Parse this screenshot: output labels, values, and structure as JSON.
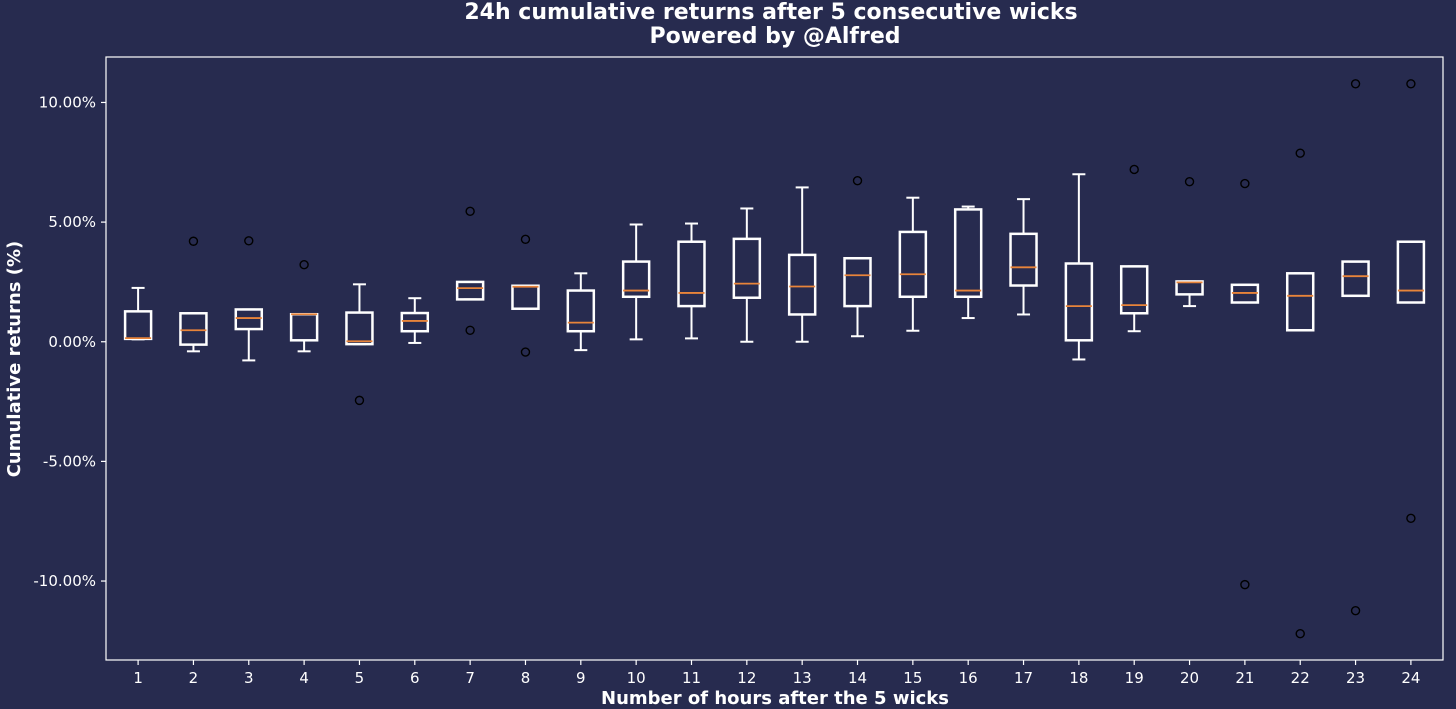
{
  "chart_data": {
    "type": "boxplot",
    "title": "24h cumulative returns after 5 consecutive wicks",
    "subtitle": "Powered by @Alfred",
    "xlabel": "Number of hours after the 5 wicks",
    "ylabel": "Cumulative returns (%)",
    "ylim": [
      -13.3,
      11.9
    ],
    "yticks": [
      -10,
      -5,
      0,
      5,
      10
    ],
    "ytick_labels": [
      "-10.00%",
      "-5.00%",
      "0.00%",
      "5.00%",
      "10.00%"
    ],
    "grid": false,
    "colors": {
      "background": "#272b4f",
      "box": "#ffffff",
      "median": "#e8843a",
      "text": "#ffffff"
    },
    "categories": [
      "1",
      "2",
      "3",
      "4",
      "5",
      "6",
      "7",
      "8",
      "9",
      "10",
      "11",
      "12",
      "13",
      "14",
      "15",
      "16",
      "17",
      "18",
      "19",
      "20",
      "21",
      "22",
      "23",
      "24"
    ],
    "boxes": [
      {
        "whislo": 0.1,
        "q1": 0.12,
        "med": 0.15,
        "q3": 1.27,
        "whishi": 2.25,
        "fliers": []
      },
      {
        "whislo": -0.4,
        "q1": -0.12,
        "med": 0.48,
        "q3": 1.19,
        "whishi": 1.19,
        "fliers": [
          4.2
        ]
      },
      {
        "whislo": -0.78,
        "q1": 0.53,
        "med": 0.99,
        "q3": 1.35,
        "whishi": 1.35,
        "fliers": [
          4.22
        ]
      },
      {
        "whislo": -0.4,
        "q1": 0.06,
        "med": 1.15,
        "q3": 1.15,
        "whishi": 1.15,
        "fliers": [
          3.22
        ]
      },
      {
        "whislo": -0.1,
        "q1": -0.1,
        "med": 0.02,
        "q3": 1.22,
        "whishi": 2.4,
        "fliers": [
          -2.45
        ]
      },
      {
        "whislo": -0.05,
        "q1": 0.44,
        "med": 0.87,
        "q3": 1.2,
        "whishi": 1.82,
        "fliers": []
      },
      {
        "whislo": 1.77,
        "q1": 1.77,
        "med": 2.24,
        "q3": 2.5,
        "whishi": 2.5,
        "fliers": [
          5.45,
          0.48
        ]
      },
      {
        "whislo": 1.38,
        "q1": 1.38,
        "med": 2.3,
        "q3": 2.34,
        "whishi": 2.34,
        "fliers": [
          4.28,
          -0.43
        ]
      },
      {
        "whislo": -0.35,
        "q1": 0.44,
        "med": 0.8,
        "q3": 2.14,
        "whishi": 2.86,
        "fliers": []
      },
      {
        "whislo": 0.1,
        "q1": 1.88,
        "med": 2.14,
        "q3": 3.35,
        "whishi": 4.9,
        "fliers": []
      },
      {
        "whislo": 0.14,
        "q1": 1.49,
        "med": 2.04,
        "q3": 4.18,
        "whishi": 4.94,
        "fliers": []
      },
      {
        "whislo": 0.0,
        "q1": 1.84,
        "med": 2.43,
        "q3": 4.3,
        "whishi": 5.57,
        "fliers": []
      },
      {
        "whislo": 0.0,
        "q1": 1.14,
        "med": 2.31,
        "q3": 3.63,
        "whishi": 6.45,
        "fliers": []
      },
      {
        "whislo": 0.23,
        "q1": 1.49,
        "med": 2.78,
        "q3": 3.49,
        "whishi": 3.49,
        "fliers": [
          6.73
        ]
      },
      {
        "whislo": 0.46,
        "q1": 1.88,
        "med": 2.82,
        "q3": 4.59,
        "whishi": 6.02,
        "fliers": []
      },
      {
        "whislo": 0.99,
        "q1": 1.88,
        "med": 2.14,
        "q3": 5.53,
        "whishi": 5.65,
        "fliers": []
      },
      {
        "whislo": 1.14,
        "q1": 2.35,
        "med": 3.11,
        "q3": 4.51,
        "whishi": 5.96,
        "fliers": []
      },
      {
        "whislo": -0.74,
        "q1": 0.06,
        "med": 1.49,
        "q3": 3.27,
        "whishi": 7.0,
        "fliers": []
      },
      {
        "whislo": 0.44,
        "q1": 1.19,
        "med": 1.53,
        "q3": 3.15,
        "whishi": 3.15,
        "fliers": [
          7.2
        ]
      },
      {
        "whislo": 1.49,
        "q1": 1.98,
        "med": 2.48,
        "q3": 2.52,
        "whishi": 2.52,
        "fliers": [
          6.69
        ]
      },
      {
        "whislo": 1.64,
        "q1": 1.64,
        "med": 2.04,
        "q3": 2.38,
        "whishi": 2.38,
        "fliers": [
          6.61,
          -10.15
        ]
      },
      {
        "whislo": 0.48,
        "q1": 0.48,
        "med": 1.92,
        "q3": 2.86,
        "whishi": 2.86,
        "fliers": [
          7.88,
          -12.2
        ]
      },
      {
        "whislo": 1.92,
        "q1": 1.92,
        "med": 2.74,
        "q3": 3.35,
        "whishi": 3.35,
        "fliers": [
          10.78,
          -11.24
        ]
      },
      {
        "whislo": 1.64,
        "q1": 1.64,
        "med": 2.14,
        "q3": 4.18,
        "whishi": 4.18,
        "fliers": [
          10.78,
          -7.38
        ]
      }
    ]
  }
}
